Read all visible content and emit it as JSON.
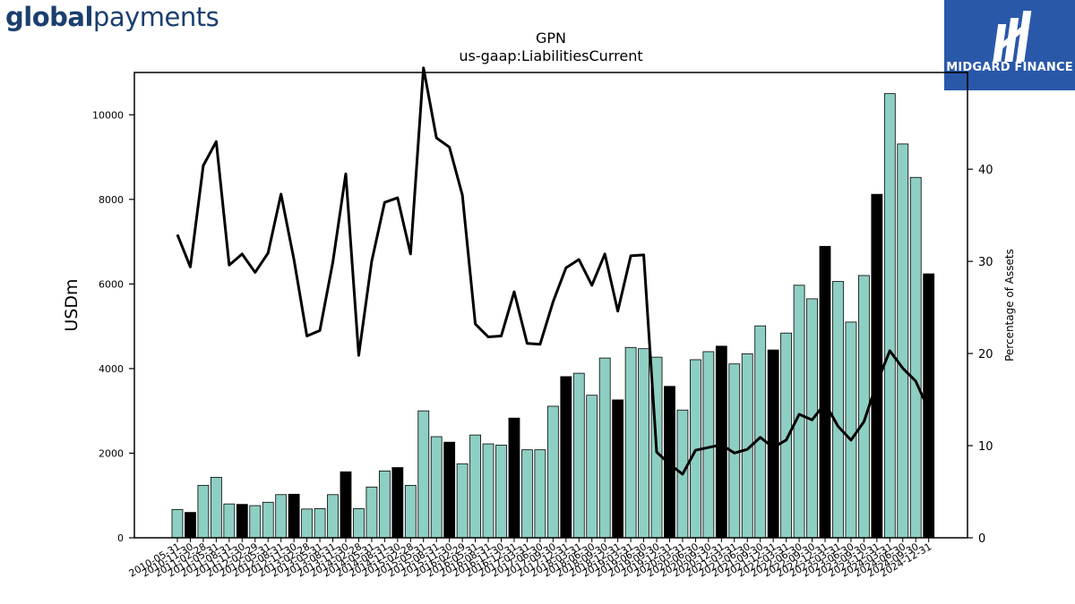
{
  "branding": {
    "left_logo_bold": "global",
    "left_logo_regular": "payments",
    "right_logo_text": "MIDGARD FINANCE",
    "right_logo_bg": "#2a58a9",
    "left_logo_color": "#1a3f6e"
  },
  "chart_data": {
    "type": "bar",
    "title": "GPN",
    "subtitle": "us-gaap:LiabilitiesCurrent",
    "ylabel": "USDm",
    "y2label": "Percentage of Assets",
    "ylim": [
      0,
      11000
    ],
    "y2lim": [
      0,
      50.5
    ],
    "yticks": [
      0,
      2000,
      4000,
      6000,
      8000,
      10000
    ],
    "y2ticks": [
      0,
      10,
      20,
      30,
      40
    ],
    "grid": false,
    "colors": {
      "quarterly": "#8ecfc3",
      "annual": "#000000",
      "line": "#000000"
    },
    "categories": [
      "2010-05-31",
      "2010-11-30",
      "2011-02-28",
      "2011-05-31",
      "2011-08-31",
      "2011-11-30",
      "2012-02-29",
      "2012-05-31",
      "2012-08-31",
      "2012-11-30",
      "2013-02-28",
      "2013-05-31",
      "2013-08-31",
      "2013-11-30",
      "2014-02-28",
      "2014-05-31",
      "2014-08-31",
      "2014-11-30",
      "2015-02-28",
      "2015-05-31",
      "2015-08-31",
      "2015-11-30",
      "2016-02-29",
      "2016-05-31",
      "2016-08-31",
      "2016-11-30",
      "2016-12-31",
      "2017-03-31",
      "2017-06-30",
      "2017-09-30",
      "2017-12-31",
      "2018-03-31",
      "2018-06-30",
      "2018-09-30",
      "2018-12-31",
      "2019-03-31",
      "2019-06-30",
      "2019-09-30",
      "2019-12-31",
      "2020-03-31",
      "2020-06-30",
      "2020-09-30",
      "2020-12-31",
      "2021-03-31",
      "2021-06-30",
      "2021-09-30",
      "2021-12-31",
      "2022-03-31",
      "2022-06-30",
      "2022-09-30",
      "2022-12-31",
      "2023-03-31",
      "2023-06-30",
      "2023-09-30",
      "2023-12-31",
      "2024-03-31",
      "2024-06-30",
      "2024-09-30",
      "2024-12-31"
    ],
    "annual": [
      false,
      true,
      false,
      false,
      false,
      true,
      false,
      false,
      false,
      true,
      false,
      false,
      false,
      true,
      false,
      false,
      false,
      true,
      false,
      false,
      false,
      true,
      false,
      false,
      false,
      false,
      true,
      false,
      false,
      false,
      true,
      false,
      false,
      false,
      true,
      false,
      false,
      false,
      true,
      false,
      false,
      false,
      true,
      false,
      false,
      false,
      true,
      false,
      false,
      false,
      true,
      false,
      false,
      false,
      true,
      false,
      false,
      false,
      true
    ],
    "series": [
      {
        "name": "",
        "kind": "bar",
        "axis": "left",
        "values": [
          670,
          600,
          1240,
          1430,
          800,
          790,
          760,
          840,
          1020,
          1030,
          680,
          690,
          1020,
          1560,
          690,
          1200,
          1580,
          1660,
          1240,
          3000,
          2390,
          2260,
          1750,
          2430,
          2220,
          2190,
          2830,
          2080,
          2080,
          3110,
          3810,
          3890,
          3370,
          4250,
          3260,
          4500,
          4470,
          4270,
          3580,
          3020,
          4210,
          4400,
          4530,
          4110,
          4350,
          5010,
          4440,
          4840,
          5970,
          5650,
          6890,
          6060,
          5100,
          6200,
          8120,
          10500,
          9310,
          8520,
          6240
        ]
      },
      {
        "name": "",
        "kind": "line",
        "axis": "right",
        "values": [
          32.9,
          29.4,
          40.4,
          43.0,
          29.6,
          30.8,
          28.8,
          30.9,
          37.3,
          30.2,
          21.9,
          22.5,
          29.9,
          39.5,
          19.8,
          30.0,
          36.4,
          36.9,
          30.8,
          51.0,
          43.4,
          42.4,
          37.2,
          23.2,
          21.8,
          21.9,
          26.7,
          21.1,
          21.0,
          25.6,
          29.3,
          30.2,
          27.4,
          30.8,
          24.6,
          30.6,
          30.7,
          9.3,
          8.0,
          6.9,
          9.5,
          9.8,
          10.1,
          9.2,
          9.6,
          10.9,
          9.8,
          10.6,
          13.4,
          12.8,
          14.6,
          12.1,
          10.6,
          12.6,
          16.8,
          20.3,
          18.4,
          17.0,
          13.9
        ]
      }
    ]
  }
}
